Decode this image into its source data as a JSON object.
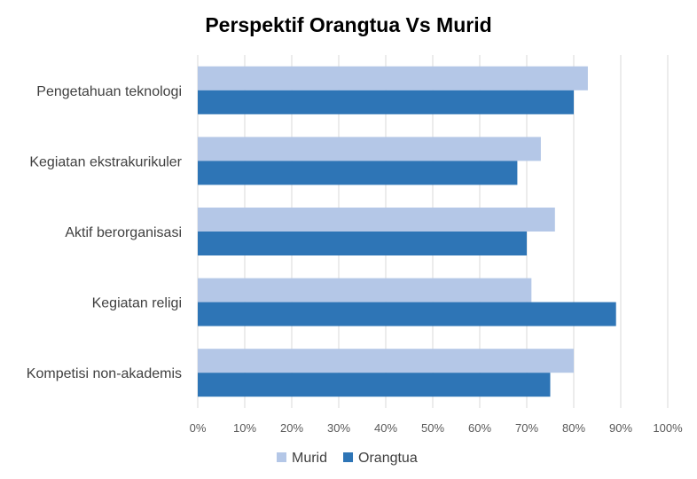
{
  "chart_data": {
    "type": "bar",
    "orientation": "horizontal",
    "title": "Perspektif Orangtua Vs Murid",
    "categories": [
      "Pengetahuan teknologi",
      "Kegiatan ekstrakurikuler",
      "Aktif berorganisasi",
      "Kegiatan religi",
      "Kompetisi non-akademis"
    ],
    "series": [
      {
        "name": "Murid",
        "color": "#b4c7e7",
        "values": [
          0.83,
          0.73,
          0.76,
          0.71,
          0.8
        ]
      },
      {
        "name": "Orangtua",
        "color": "#2e75b6",
        "values": [
          0.8,
          0.68,
          0.7,
          0.89,
          0.75
        ]
      }
    ],
    "xlim": [
      0,
      1
    ],
    "x_ticks": [
      "0%",
      "10%",
      "20%",
      "30%",
      "40%",
      "50%",
      "60%",
      "70%",
      "80%",
      "90%",
      "100%"
    ],
    "xlabel": "",
    "ylabel": "",
    "grid": true,
    "legend_position": "bottom"
  }
}
